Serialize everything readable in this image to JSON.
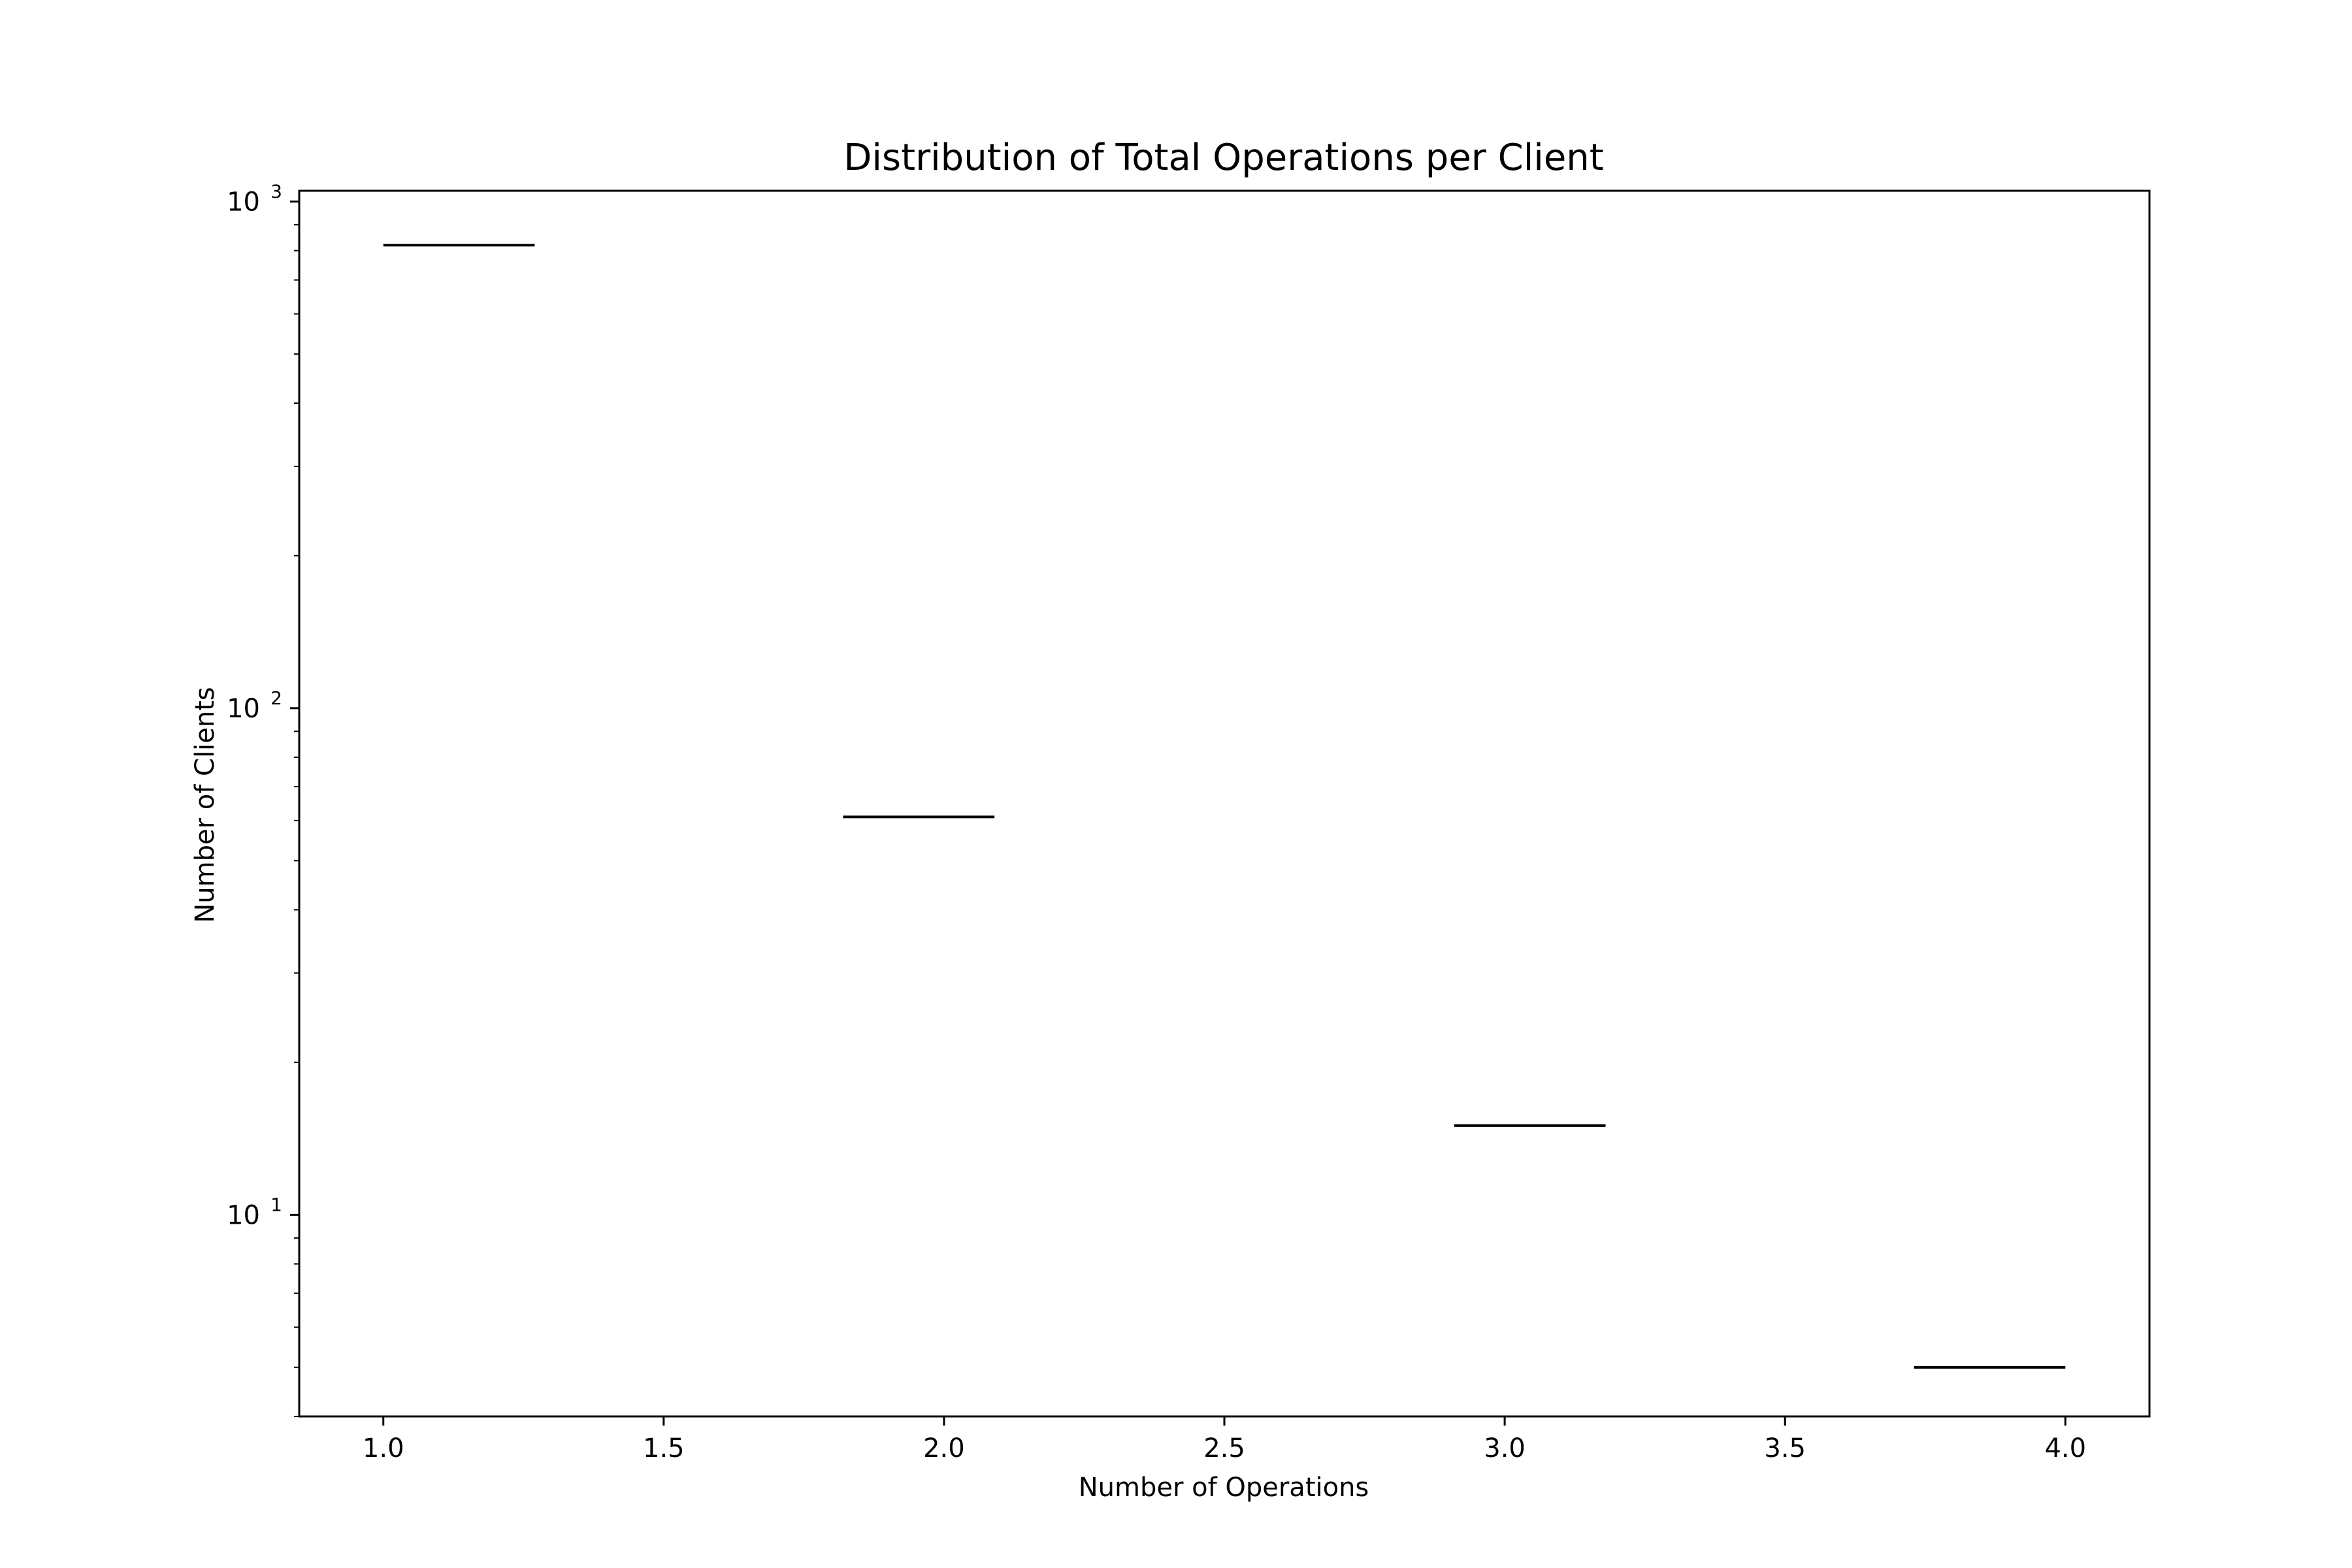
{
  "chart_data": {
    "type": "bar",
    "title": "Distribution of Total Operations per Client",
    "xlabel": "Number of Operations",
    "ylabel": "Number of Clients",
    "yscale": "log",
    "xlim": [
      0.85,
      4.15
    ],
    "ylim": [
      4,
      1050
    ],
    "x_ticks": [
      1.0,
      1.5,
      2.0,
      2.5,
      3.0,
      3.5,
      4.0
    ],
    "x_tick_labels": [
      "1.0",
      "1.5",
      "2.0",
      "2.5",
      "3.0",
      "3.5",
      "4.0"
    ],
    "y_ticks": [
      {
        "value": 10,
        "base": "10",
        "exp": "1"
      },
      {
        "value": 100,
        "base": "10",
        "exp": "2"
      },
      {
        "value": 1000,
        "base": "10",
        "exp": "3"
      }
    ],
    "bins": [
      {
        "x_start": 1.0,
        "x_end": 1.27,
        "value": 820
      },
      {
        "x_start": 1.82,
        "x_end": 2.09,
        "value": 61
      },
      {
        "x_start": 2.91,
        "x_end": 3.18,
        "value": 15
      },
      {
        "x_start": 3.73,
        "x_end": 4.0,
        "value": 5
      }
    ],
    "grid": false,
    "colors": {
      "edge": "#000000",
      "fill": "#ffffff"
    }
  }
}
